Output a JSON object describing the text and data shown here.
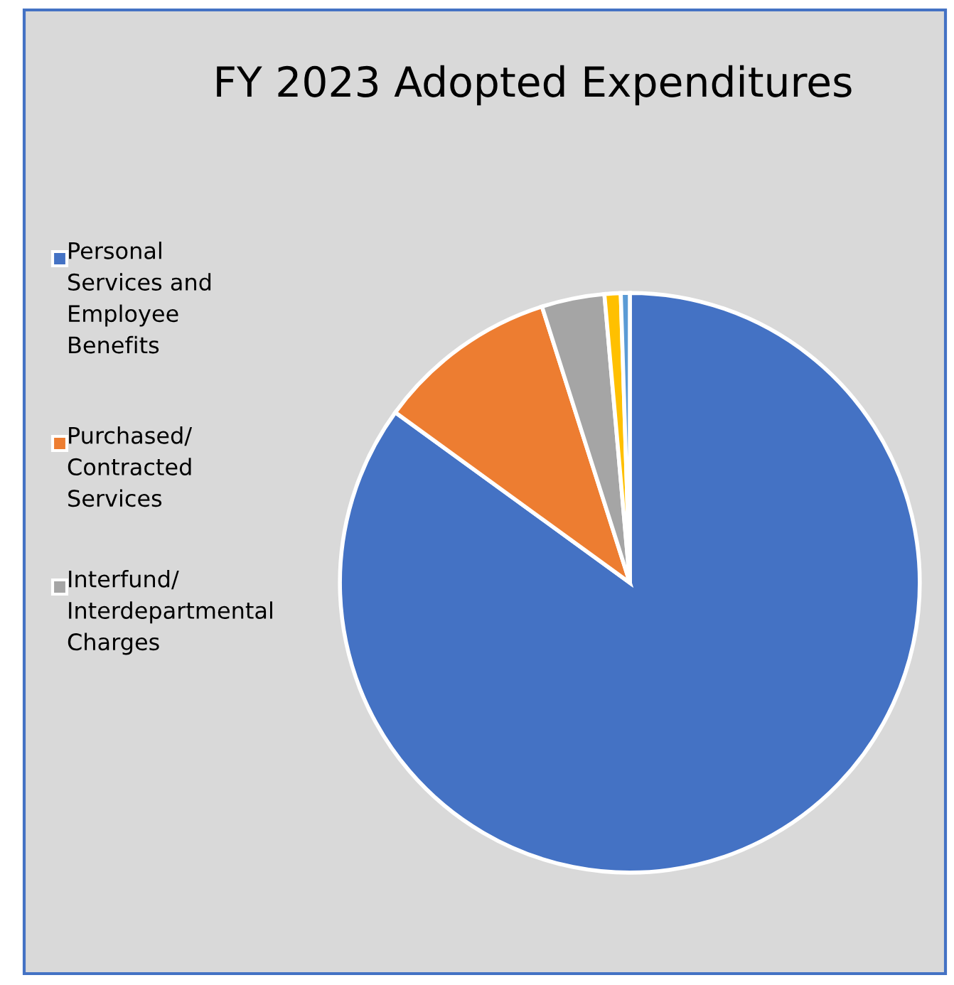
{
  "chart_data": {
    "type": "pie",
    "title": "FY 2023 Adopted Expenditures",
    "categories": [
      "Personal Services and Employee Benefits",
      "Purchased/Contracted Services",
      "Interfund/Interdepartmental Charges",
      null,
      null
    ],
    "values": [
      85.0,
      10.1,
      3.5,
      0.9,
      0.5
    ],
    "colors": [
      "#4472c4",
      "#ed7d31",
      "#a5a5a5",
      "#ffc000",
      "#5b9bd5"
    ],
    "legend": "left"
  }
}
